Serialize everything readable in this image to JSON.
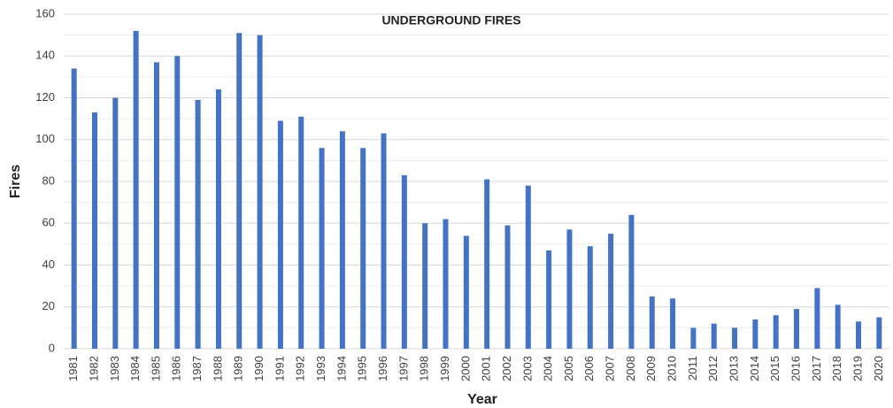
{
  "chart_data": {
    "type": "bar",
    "title": "UNDERGROUND FIRES",
    "x_label": "Year",
    "y_label": "Fires",
    "categories": [
      "1981",
      "1982",
      "1983",
      "1984",
      "1985",
      "1986",
      "1987",
      "1988",
      "1989",
      "1990",
      "1991",
      "1992",
      "1993",
      "1994",
      "1995",
      "1996",
      "1997",
      "1998",
      "1999",
      "2000",
      "2001",
      "2002",
      "2003",
      "2004",
      "2005",
      "2006",
      "2007",
      "2008",
      "2009",
      "2010",
      "2011",
      "2012",
      "2013",
      "2014",
      "2015",
      "2016",
      "2017",
      "2018",
      "2019",
      "2020"
    ],
    "values": [
      134,
      113,
      120,
      152,
      137,
      140,
      119,
      124,
      151,
      150,
      109,
      111,
      96,
      104,
      96,
      103,
      83,
      60,
      62,
      54,
      81,
      59,
      78,
      47,
      57,
      49,
      55,
      64,
      25,
      24,
      10,
      12,
      10,
      14,
      16,
      19,
      29,
      21,
      13,
      15
    ],
    "color": "#4472c4",
    "ylim": [
      0,
      160
    ],
    "yticks": [
      0,
      20,
      40,
      60,
      80,
      100,
      120,
      140,
      160
    ],
    "minor_yticks": [
      10,
      30,
      50,
      70,
      90,
      110,
      130,
      150
    ],
    "grid": true
  }
}
